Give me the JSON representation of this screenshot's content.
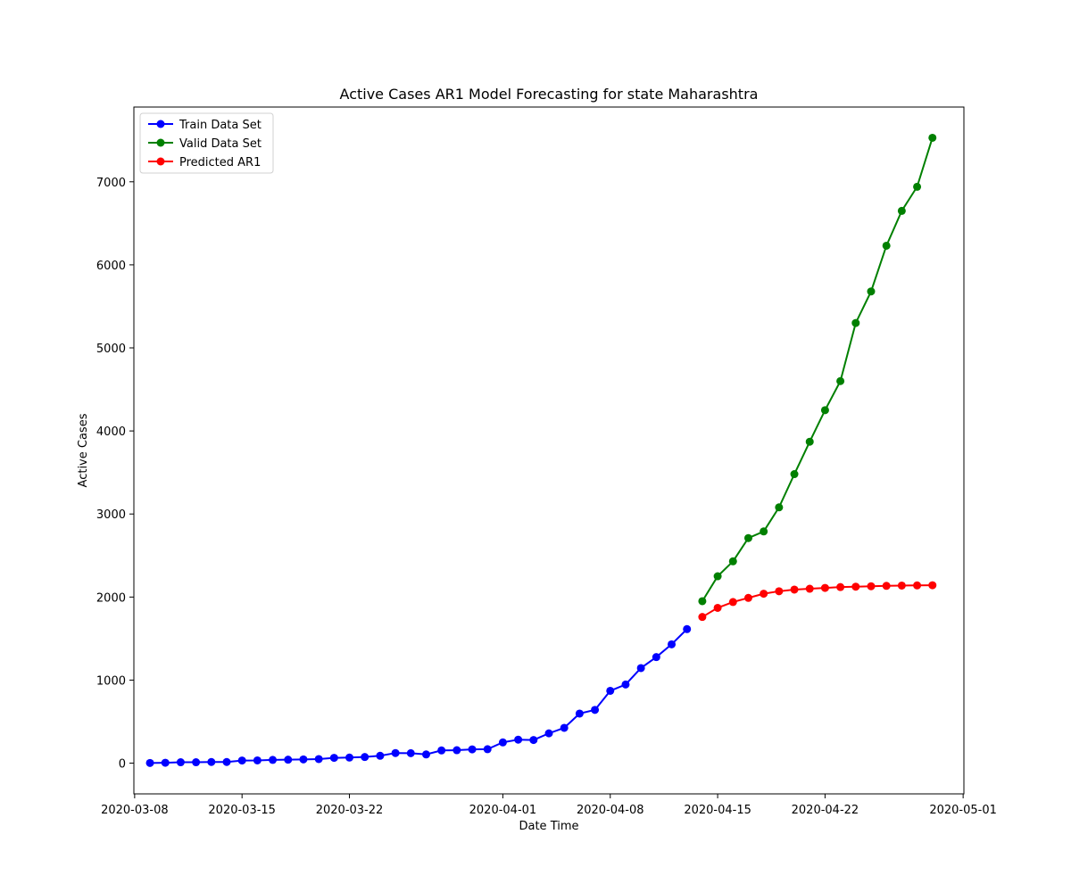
{
  "chart_data": {
    "type": "line",
    "title": "Active Cases AR1 Model Forecasting for state Maharashtra",
    "xlabel": "Date Time",
    "ylabel": "Active Cases",
    "x_ticks": [
      "2020-03-08",
      "2020-03-15",
      "2020-03-22",
      "2020-04-01",
      "2020-04-08",
      "2020-04-15",
      "2020-04-22",
      "2020-05-01"
    ],
    "y_ticks": [
      0,
      1000,
      2000,
      3000,
      4000,
      5000,
      6000,
      7000
    ],
    "xlim": [
      "2020-03-08",
      "2020-05-01"
    ],
    "ylim": [
      -370,
      7900
    ],
    "grid": false,
    "legend_placement": "top-left",
    "series": [
      {
        "name": "Train Data Set",
        "color": "#0000ff",
        "x": [
          "2020-03-09",
          "2020-03-10",
          "2020-03-11",
          "2020-03-12",
          "2020-03-13",
          "2020-03-14",
          "2020-03-15",
          "2020-03-16",
          "2020-03-17",
          "2020-03-18",
          "2020-03-19",
          "2020-03-20",
          "2020-03-21",
          "2020-03-22",
          "2020-03-23",
          "2020-03-24",
          "2020-03-25",
          "2020-03-26",
          "2020-03-27",
          "2020-03-28",
          "2020-03-29",
          "2020-03-30",
          "2020-03-31",
          "2020-04-01",
          "2020-04-02",
          "2020-04-03",
          "2020-04-04",
          "2020-04-05",
          "2020-04-06",
          "2020-04-07",
          "2020-04-08",
          "2020-04-09",
          "2020-04-10",
          "2020-04-11",
          "2020-04-12",
          "2020-04-13"
        ],
        "y": [
          2,
          5,
          11,
          11,
          14,
          14,
          32,
          33,
          39,
          42,
          45,
          49,
          64,
          67,
          74,
          89,
          122,
          120,
          105,
          153,
          156,
          166,
          168,
          250,
          283,
          279,
          359,
          425,
          597,
          641,
          871,
          947,
          1145,
          1277,
          1431,
          1614
        ]
      },
      {
        "name": "Valid Data Set",
        "color": "#008000",
        "x": [
          "2020-04-14",
          "2020-04-15",
          "2020-04-16",
          "2020-04-17",
          "2020-04-18",
          "2020-04-19",
          "2020-04-20",
          "2020-04-21",
          "2020-04-22",
          "2020-04-23",
          "2020-04-24",
          "2020-04-25",
          "2020-04-26",
          "2020-04-27",
          "2020-04-28",
          "2020-04-29"
        ],
        "y": [
          1950,
          2250,
          2430,
          2710,
          2790,
          3080,
          3480,
          3870,
          4250,
          4600,
          5300,
          5680,
          6230,
          6650,
          6940,
          7530
        ]
      },
      {
        "name": "Predicted AR1",
        "color": "#ff0000",
        "x": [
          "2020-04-14",
          "2020-04-15",
          "2020-04-16",
          "2020-04-17",
          "2020-04-18",
          "2020-04-19",
          "2020-04-20",
          "2020-04-21",
          "2020-04-22",
          "2020-04-23",
          "2020-04-24",
          "2020-04-25",
          "2020-04-26",
          "2020-04-27",
          "2020-04-28",
          "2020-04-29"
        ],
        "y": [
          1760,
          1870,
          1940,
          1990,
          2040,
          2070,
          2090,
          2100,
          2110,
          2120,
          2125,
          2130,
          2135,
          2138,
          2140,
          2142
        ]
      }
    ]
  }
}
